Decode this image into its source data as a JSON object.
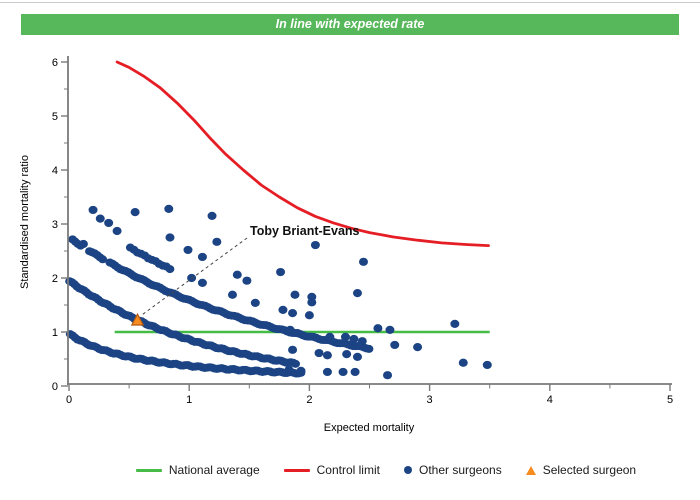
{
  "banner": {
    "text": "In line with expected rate",
    "bg_color": "#57b75b",
    "text_color": "#ffffff"
  },
  "chart": {
    "xlabel": "Expected mortality",
    "ylabel": "Standardised mortality ratio",
    "xlim": [
      0,
      5
    ],
    "ylim": [
      0,
      6
    ],
    "xticks": [
      0,
      1,
      2,
      3,
      4,
      5
    ],
    "yticks": [
      0,
      1,
      2,
      3,
      4,
      5,
      6
    ],
    "minor_tick_step": 0.5,
    "axis_color": "#7a7a7a"
  },
  "chart_data": {
    "type": "scatter",
    "title": "In line with expected rate",
    "xlabel": "Expected mortality",
    "ylabel": "Standardised mortality ratio",
    "xlim": [
      0,
      5
    ],
    "ylim": [
      0,
      6
    ],
    "grid": false,
    "legend_position": "bottom",
    "annotation": {
      "text": "Toby Briant-Evans",
      "target": [
        0.57,
        1.2
      ]
    },
    "series": [
      {
        "name": "National average",
        "type": "line",
        "color": "#46bc46",
        "y": 1.0,
        "x_start": 0.38,
        "x_end": 3.5
      },
      {
        "name": "Control limit",
        "type": "line",
        "color": "#e51e25",
        "points": [
          [
            0.4,
            6.0
          ],
          [
            0.5,
            5.9
          ],
          [
            0.62,
            5.74
          ],
          [
            0.76,
            5.52
          ],
          [
            0.9,
            5.24
          ],
          [
            1.05,
            4.9
          ],
          [
            1.17,
            4.6
          ],
          [
            1.3,
            4.3
          ],
          [
            1.45,
            4.0
          ],
          [
            1.6,
            3.72
          ],
          [
            1.75,
            3.5
          ],
          [
            1.9,
            3.3
          ],
          [
            2.05,
            3.14
          ],
          [
            2.2,
            3.02
          ],
          [
            2.35,
            2.92
          ],
          [
            2.5,
            2.84
          ],
          [
            2.7,
            2.76
          ],
          [
            2.9,
            2.7
          ],
          [
            3.1,
            2.65
          ],
          [
            3.3,
            2.62
          ],
          [
            3.49,
            2.6
          ]
        ]
      },
      {
        "name": "Other surgeons",
        "type": "scatter",
        "color": "#1c4484",
        "points": [
          [
            0.2,
            3.26
          ],
          [
            0.26,
            3.1
          ],
          [
            0.33,
            3.02
          ],
          [
            0.4,
            2.87
          ],
          [
            0.55,
            3.22
          ],
          [
            0.83,
            3.28
          ],
          [
            1.19,
            3.15
          ],
          [
            0.12,
            2.63
          ],
          [
            0.84,
            2.75
          ],
          [
            1.23,
            2.67
          ],
          [
            0.99,
            2.52
          ],
          [
            1.11,
            2.39
          ],
          [
            2.05,
            2.61
          ],
          [
            2.45,
            2.3
          ],
          [
            1.02,
            2.0
          ],
          [
            1.11,
            1.91
          ],
          [
            1.4,
            2.06
          ],
          [
            1.48,
            1.95
          ],
          [
            1.76,
            2.11
          ],
          [
            1.36,
            1.69
          ],
          [
            1.55,
            1.54
          ],
          [
            1.78,
            1.41
          ],
          [
            1.88,
            1.69
          ],
          [
            2.02,
            1.65
          ],
          [
            2.4,
            1.72
          ],
          [
            1.86,
            1.35
          ],
          [
            2.02,
            1.55
          ],
          [
            2.0,
            1.31
          ],
          [
            1.84,
            1.04
          ],
          [
            1.9,
            0.98
          ],
          [
            2.17,
            0.91
          ],
          [
            2.3,
            0.91
          ],
          [
            2.37,
            0.87
          ],
          [
            2.44,
            0.83
          ],
          [
            2.57,
            1.07
          ],
          [
            2.67,
            1.04
          ],
          [
            3.21,
            1.15
          ],
          [
            2.71,
            0.76
          ],
          [
            2.9,
            0.72
          ],
          [
            1.86,
            0.67
          ],
          [
            2.08,
            0.61
          ],
          [
            2.15,
            0.57
          ],
          [
            2.31,
            0.59
          ],
          [
            2.4,
            0.54
          ],
          [
            3.28,
            0.43
          ],
          [
            3.48,
            0.39
          ],
          [
            1.83,
            0.3
          ],
          [
            1.93,
            0.28
          ],
          [
            2.15,
            0.26
          ],
          [
            2.28,
            0.26
          ],
          [
            2.38,
            0.26
          ],
          [
            2.65,
            0.2
          ]
        ],
        "dense_bands": [
          {
            "curve": "hyp",
            "a": 0.97,
            "b": 1.6,
            "x_step": 0.02,
            "segments": [
              [
                0.01,
                1.93
              ]
            ]
          },
          {
            "curve": "exp",
            "a": 1.95,
            "k": 0.82,
            "x_step": 0.02,
            "segments": [
              [
                0.005,
                1.9
              ]
            ]
          },
          {
            "curve": "exp",
            "a": 2.75,
            "k": 0.55,
            "x_step": 0.022,
            "segments": [
              [
                0.03,
                0.1
              ],
              [
                0.17,
                0.3
              ],
              [
                0.34,
                2.5
              ]
            ]
          },
          {
            "curve": "exp",
            "a": 3.3,
            "k": 0.5,
            "x_step": 0.03,
            "segments": [
              [
                0.51,
                0.84
              ]
            ]
          }
        ]
      },
      {
        "name": "Selected surgeon",
        "type": "point",
        "color": "#f68b1f",
        "edge_color": "#b35a11",
        "marker": "triangle",
        "x": 0.57,
        "y": 1.2,
        "label": "Toby Briant-Evans"
      }
    ]
  },
  "legend": {
    "items": [
      {
        "label": "National average",
        "swatch": "line",
        "color": "#46bc46"
      },
      {
        "label": "Control limit",
        "swatch": "line",
        "color": "#e51e25"
      },
      {
        "label": "Other surgeons",
        "swatch": "dot",
        "color": "#1c4484"
      },
      {
        "label": "Selected surgeon",
        "swatch": "triangle",
        "color": "#f68b1f"
      }
    ]
  }
}
